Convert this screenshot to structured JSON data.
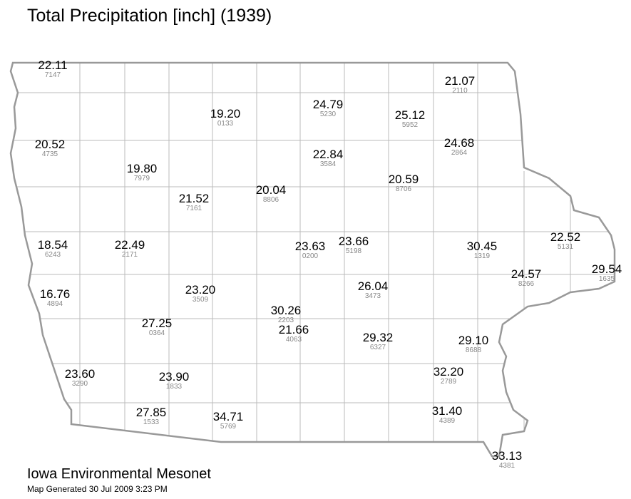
{
  "title": "Total Precipitation [inch] (1939)",
  "stations": [
    {
      "value": "22.11",
      "id": "7147"
    },
    {
      "value": "21.07",
      "id": "2110"
    },
    {
      "value": "19.20",
      "id": "0133"
    },
    {
      "value": "24.79",
      "id": "5230"
    },
    {
      "value": "25.12",
      "id": "5952"
    },
    {
      "value": "20.52",
      "id": "4735"
    },
    {
      "value": "24.68",
      "id": "2864"
    },
    {
      "value": "22.84",
      "id": "3584"
    },
    {
      "value": "19.80",
      "id": "7979"
    },
    {
      "value": "20.59",
      "id": "8706"
    },
    {
      "value": "20.04",
      "id": "8806"
    },
    {
      "value": "21.52",
      "id": "7161"
    },
    {
      "value": "18.54",
      "id": "6243"
    },
    {
      "value": "22.49",
      "id": "2171"
    },
    {
      "value": "23.63",
      "id": "0200"
    },
    {
      "value": "23.66",
      "id": "5198"
    },
    {
      "value": "30.45",
      "id": "1319"
    },
    {
      "value": "22.52",
      "id": "5131"
    },
    {
      "value": "29.54",
      "id": "1635"
    },
    {
      "value": "24.57",
      "id": "8266"
    },
    {
      "value": "16.76",
      "id": "4894"
    },
    {
      "value": "26.04",
      "id": "3473"
    },
    {
      "value": "23.20",
      "id": "3509"
    },
    {
      "value": "30.26",
      "id": "2203"
    },
    {
      "value": "27.25",
      "id": "0364"
    },
    {
      "value": "21.66",
      "id": "4063"
    },
    {
      "value": "29.32",
      "id": "6327"
    },
    {
      "value": "29.10",
      "id": "8688"
    },
    {
      "value": "23.60",
      "id": "3290"
    },
    {
      "value": "23.90",
      "id": "1833"
    },
    {
      "value": "32.20",
      "id": "2789"
    },
    {
      "value": "27.85",
      "id": "1533"
    },
    {
      "value": "34.71",
      "id": "5769"
    },
    {
      "value": "31.40",
      "id": "4389"
    },
    {
      "value": "33.13",
      "id": "4381"
    }
  ],
  "footer": {
    "source": "Iowa Environmental Mesonet",
    "generated": "Map Generated 30 Jul 2009 3:23 PM"
  }
}
